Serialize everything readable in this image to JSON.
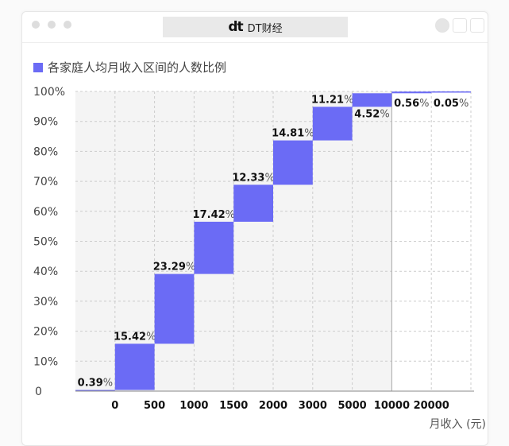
{
  "window": {
    "title": "DT财经",
    "logo": "dt"
  },
  "chart_data": {
    "type": "waterfall",
    "title": "各家庭人均月收入区间的人数比例",
    "legend": [
      "各家庭人均月收入区间的人数比例"
    ],
    "xlabel": "月收入 (元)",
    "ylabel": "",
    "ylim": [
      0,
      100
    ],
    "yticks": [
      "0",
      "10%",
      "20%",
      "30%",
      "40%",
      "50%",
      "60%",
      "70%",
      "80%",
      "90%",
      "100%"
    ],
    "xticks": [
      "0",
      "500",
      "1000",
      "1500",
      "2000",
      "3000",
      "5000",
      "10000",
      "20000"
    ],
    "values": [
      0.39,
      15.42,
      23.29,
      17.42,
      12.33,
      14.81,
      11.21,
      4.52,
      0.56,
      0.05
    ],
    "labels": [
      "0.39",
      "15.42",
      "23.29",
      "17.42",
      "12.33",
      "14.81",
      "11.21",
      "4.52",
      "0.56",
      "0.05"
    ],
    "label_suffix": "%",
    "color": "#6b6bf5",
    "grid": true
  }
}
